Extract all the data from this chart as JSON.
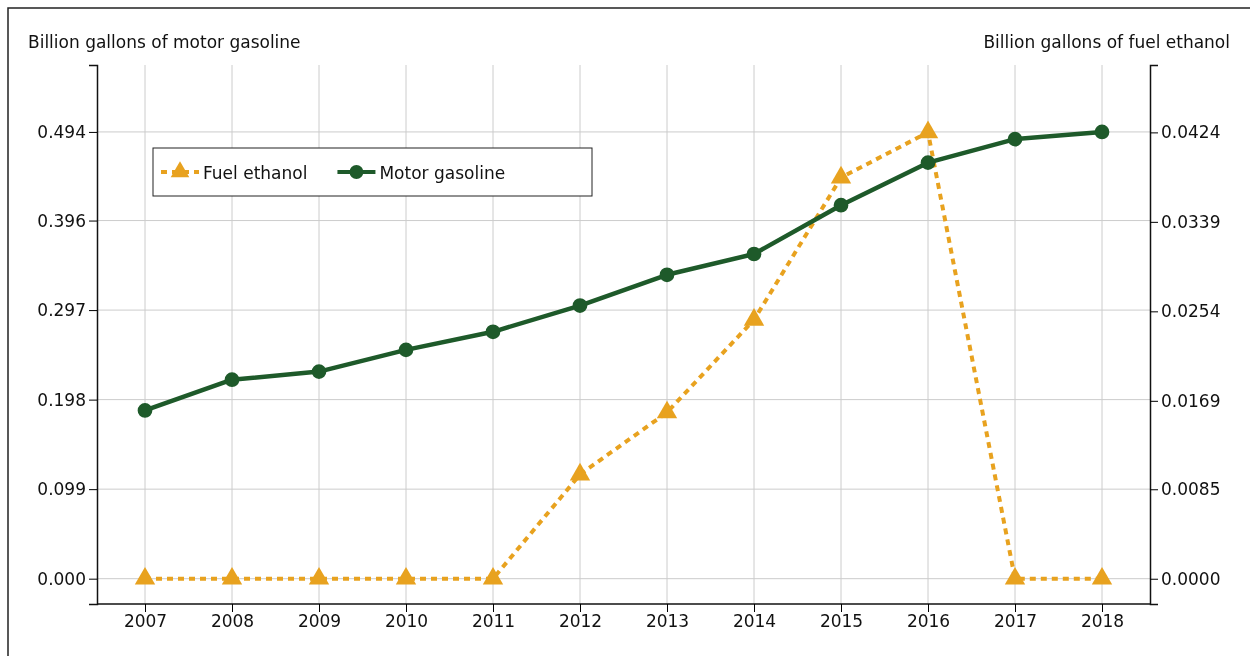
{
  "chart_data": {
    "type": "line",
    "ylabel": "Billion gallons of motor gasoline",
    "y2label": "Billion gallons of fuel ethanol",
    "categories": [
      "2007",
      "2008",
      "2009",
      "2010",
      "2011",
      "2012",
      "2013",
      "2014",
      "2015",
      "2016",
      "2017",
      "2018"
    ],
    "series": [
      {
        "name": "Fuel ethanol",
        "color": "#e8a21f",
        "axis": "y2",
        "marker": "triangle",
        "line_style": "dashed",
        "values": [
          0,
          0,
          0,
          0,
          0,
          0.0099,
          0.0158,
          0.0246,
          0.0381,
          0.0424,
          0,
          0
        ]
      },
      {
        "name": "Motor gasoline",
        "color": "#1e5a2a",
        "axis": "y",
        "marker": "circle",
        "line_style": "solid",
        "values": [
          0.186,
          0.22,
          0.229,
          0.253,
          0.273,
          0.302,
          0.336,
          0.359,
          0.413,
          0.46,
          0.486,
          0.494
        ]
      }
    ],
    "ylim": [
      -0.028,
      0.568
    ],
    "yticks": [
      {
        "value": 0,
        "label": "0.000"
      },
      0.099,
      0.198,
      0.297,
      0.396,
      0.494
    ],
    "y2lim": [
      -0.0024,
      0.0488
    ],
    "y2ticks": [
      {
        "value": 0,
        "label": "0.0000"
      },
      0.0085,
      0.0169,
      0.0254,
      0.0339,
      0.0424
    ],
    "grid": true,
    "legend": "top left"
  }
}
